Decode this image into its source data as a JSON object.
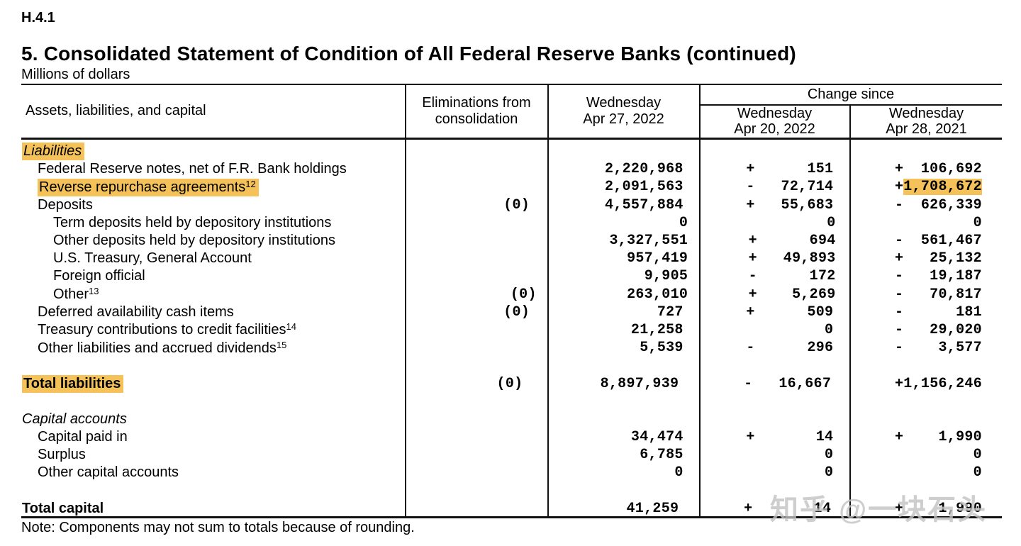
{
  "report_code": "H.4.1",
  "title": "5. Consolidated Statement of Condition of All Federal Reserve Banks (continued)",
  "subtitle": "Millions of dollars",
  "note": "Note: Components may not sum to totals because of rounding.",
  "watermark": "知乎 @一块石头",
  "colors": {
    "highlight": "#F4C258",
    "rule": "#111111",
    "watermark": "#C2C2C2"
  },
  "table": {
    "headers": {
      "assets": "Assets, liabilities, and capital",
      "elim1": "Eliminations from",
      "elim2": "consolidation",
      "cur1": "Wednesday",
      "cur2": "Apr 27, 2022",
      "change_since": "Change since",
      "chg20_1": "Wednesday",
      "chg20_2": "Apr 20, 2022",
      "chg21_1": "Wednesday",
      "chg21_2": "Apr 28, 2021"
    },
    "rows": [
      {
        "label": "Liabilities",
        "sup": "",
        "indent": 0,
        "style": "section",
        "hl_label": true,
        "elim": "",
        "cur": "",
        "chg20": null,
        "chg21": null
      },
      {
        "label": "Federal Reserve notes, net of F.R. Bank holdings",
        "sup": "",
        "indent": 1,
        "style": "item",
        "hl_label": false,
        "elim": "",
        "cur": "2,220,968",
        "chg20": {
          "sign": "+",
          "value": "151"
        },
        "chg21": {
          "sign": "+",
          "value": "106,692",
          "highlight": false
        }
      },
      {
        "label": "Reverse repurchase agreements",
        "sup": "12",
        "indent": 1,
        "style": "item",
        "hl_label": true,
        "elim": "",
        "cur": "2,091,563",
        "chg20": {
          "sign": "-",
          "value": "72,714"
        },
        "chg21": {
          "sign": "+",
          "value": "1,708,672",
          "highlight": true
        }
      },
      {
        "label": "Deposits",
        "sup": "",
        "indent": 1,
        "style": "item",
        "hl_label": false,
        "elim": "(0)",
        "cur": "4,557,884",
        "chg20": {
          "sign": "+",
          "value": "55,683"
        },
        "chg21": {
          "sign": "-",
          "value": "626,339",
          "highlight": false
        }
      },
      {
        "label": "Term deposits held by depository institutions",
        "sup": "",
        "indent": 2,
        "style": "item",
        "hl_label": false,
        "elim": "",
        "cur": "0",
        "chg20": {
          "sign": "",
          "value": "0"
        },
        "chg21": {
          "sign": "",
          "value": "0",
          "highlight": false
        }
      },
      {
        "label": "Other deposits held by depository institutions",
        "sup": "",
        "indent": 2,
        "style": "item",
        "hl_label": false,
        "elim": "",
        "cur": "3,327,551",
        "chg20": {
          "sign": "+",
          "value": "694"
        },
        "chg21": {
          "sign": "-",
          "value": "561,467",
          "highlight": false
        }
      },
      {
        "label": "U.S. Treasury, General Account",
        "sup": "",
        "indent": 2,
        "style": "item",
        "hl_label": false,
        "elim": "",
        "cur": "957,419",
        "chg20": {
          "sign": "+",
          "value": "49,893"
        },
        "chg21": {
          "sign": "+",
          "value": "25,132",
          "highlight": false
        }
      },
      {
        "label": "Foreign official",
        "sup": "",
        "indent": 2,
        "style": "item",
        "hl_label": false,
        "elim": "",
        "cur": "9,905",
        "chg20": {
          "sign": "-",
          "value": "172"
        },
        "chg21": {
          "sign": "-",
          "value": "19,187",
          "highlight": false
        }
      },
      {
        "label": "Other",
        "sup": "13",
        "indent": 2,
        "style": "item",
        "hl_label": false,
        "elim": "(0)",
        "cur": "263,010",
        "chg20": {
          "sign": "+",
          "value": "5,269"
        },
        "chg21": {
          "sign": "-",
          "value": "70,817",
          "highlight": false
        }
      },
      {
        "label": "Deferred availability cash items",
        "sup": "",
        "indent": 1,
        "style": "item",
        "hl_label": false,
        "elim": "(0)",
        "cur": "727",
        "chg20": {
          "sign": "+",
          "value": "509"
        },
        "chg21": {
          "sign": "-",
          "value": "181",
          "highlight": false
        }
      },
      {
        "label": "Treasury contributions to credit facilities",
        "sup": "14",
        "indent": 1,
        "style": "item",
        "hl_label": false,
        "elim": "",
        "cur": "21,258",
        "chg20": {
          "sign": "",
          "value": "0"
        },
        "chg21": {
          "sign": "-",
          "value": "29,020",
          "highlight": false
        }
      },
      {
        "label": "Other liabilities and accrued dividends",
        "sup": "15",
        "indent": 1,
        "style": "item",
        "hl_label": false,
        "elim": "",
        "cur": "5,539",
        "chg20": {
          "sign": "-",
          "value": "296"
        },
        "chg21": {
          "sign": "-",
          "value": "3,577",
          "highlight": false
        }
      },
      {
        "label": "",
        "sup": "",
        "indent": 0,
        "style": "blank",
        "hl_label": false,
        "elim": "",
        "cur": "",
        "chg20": null,
        "chg21": null
      },
      {
        "label": "Total liabilities",
        "sup": "",
        "indent": 0,
        "style": "total",
        "hl_label": true,
        "elim": "(0)",
        "cur": "8,897,939",
        "chg20": {
          "sign": "-",
          "value": "16,667"
        },
        "chg21": {
          "sign": "+",
          "value": "1,156,246",
          "highlight": false
        }
      },
      {
        "label": "",
        "sup": "",
        "indent": 0,
        "style": "blank",
        "hl_label": false,
        "elim": "",
        "cur": "",
        "chg20": null,
        "chg21": null
      },
      {
        "label": "Capital accounts",
        "sup": "",
        "indent": 0,
        "style": "section",
        "hl_label": false,
        "elim": "",
        "cur": "",
        "chg20": null,
        "chg21": null
      },
      {
        "label": "Capital paid in",
        "sup": "",
        "indent": 1,
        "style": "item",
        "hl_label": false,
        "elim": "",
        "cur": "34,474",
        "chg20": {
          "sign": "+",
          "value": "14"
        },
        "chg21": {
          "sign": "+",
          "value": "1,990",
          "highlight": false
        }
      },
      {
        "label": "Surplus",
        "sup": "",
        "indent": 1,
        "style": "item",
        "hl_label": false,
        "elim": "",
        "cur": "6,785",
        "chg20": {
          "sign": "",
          "value": "0"
        },
        "chg21": {
          "sign": "",
          "value": "0",
          "highlight": false
        }
      },
      {
        "label": "Other capital accounts",
        "sup": "",
        "indent": 1,
        "style": "item",
        "hl_label": false,
        "elim": "",
        "cur": "0",
        "chg20": {
          "sign": "",
          "value": "0"
        },
        "chg21": {
          "sign": "",
          "value": "0",
          "highlight": false
        }
      },
      {
        "label": "",
        "sup": "",
        "indent": 0,
        "style": "blank",
        "hl_label": false,
        "elim": "",
        "cur": "",
        "chg20": null,
        "chg21": null
      },
      {
        "label": "Total capital",
        "sup": "",
        "indent": 0,
        "style": "total_plain",
        "hl_label": false,
        "elim": "",
        "cur": "41,259",
        "chg20": {
          "sign": "+",
          "value": "14"
        },
        "chg21": {
          "sign": "+",
          "value": "1,990",
          "highlight": false
        }
      }
    ]
  }
}
